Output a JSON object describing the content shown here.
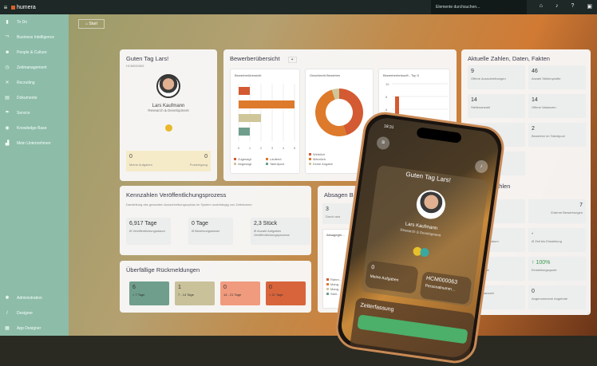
{
  "topbar": {
    "brand": "humera",
    "search_placeholder": "Elemente durchsuchen..."
  },
  "sidebar": {
    "items": [
      {
        "label": "To Do",
        "icon": "file-icon"
      },
      {
        "label": "Business Intelligence",
        "icon": "chart-icon"
      },
      {
        "label": "People & Culture",
        "icon": "people-icon"
      },
      {
        "label": "Zeitmanagement",
        "icon": "clock-icon"
      },
      {
        "label": "Recruiting",
        "icon": "recruiting-icon"
      },
      {
        "label": "Dokumente",
        "icon": "document-icon"
      },
      {
        "label": "Service",
        "icon": "service-icon"
      },
      {
        "label": "Knowledge Base",
        "icon": "knowledge-icon"
      },
      {
        "label": "Mein Unternehmen",
        "icon": "building-icon"
      }
    ],
    "bottom": [
      {
        "label": "Administration",
        "icon": "gear-icon"
      },
      {
        "label": "Designer",
        "icon": "pencil-icon"
      },
      {
        "label": "App Designer",
        "icon": "app-icon"
      }
    ]
  },
  "breadcrumb": {
    "label": "Start"
  },
  "greeting": {
    "title": "Guten Tag Lars!",
    "id": "HCM000063",
    "name": "Lars Kaufmann",
    "dept": "Research & Development",
    "stats": [
      {
        "value": "0",
        "label": "Meine Aufgaben"
      },
      {
        "value": "0",
        "label": "Posteingang"
      }
    ]
  },
  "overview": {
    "title": "Bewerberübersicht",
    "add": "+",
    "chart_data": [
      {
        "type": "bar",
        "title": "Bewerberübersicht",
        "categories": [
          "Zugesagt",
          "Laufend",
          "Abgesagt",
          "Talentpool"
        ],
        "values": [
          1,
          5,
          2,
          1
        ],
        "xticks": [
          "0",
          "1",
          "2",
          "3",
          "4",
          "5"
        ],
        "colors": [
          "#d35a32",
          "#dd7a2c",
          "#cfc69a",
          "#6f9e8c"
        ]
      },
      {
        "type": "pie",
        "title": "Geschlecht Bewerber",
        "categories": [
          "Weiblich",
          "Männlich",
          "Keine Angabe"
        ],
        "values": [
          45,
          50,
          5
        ],
        "colors": [
          "#d35a32",
          "#dd7a2c",
          "#cfc69a"
        ]
      },
      {
        "type": "bar",
        "title": "Bewerberherkunft - Top 5",
        "yticks": [
          "10",
          "8",
          "6",
          "4"
        ],
        "values": [
          8
        ],
        "colors": [
          "#d35a32"
        ]
      }
    ]
  },
  "facts": {
    "title": "Aktuelle Zahlen, Daten, Fakten",
    "tiles": [
      {
        "value": "9",
        "label": "Offene Ausschreibungen"
      },
      {
        "value": "46",
        "label": "Anzahl Stellenprofile"
      },
      {
        "value": "14",
        "label": "Stellenanzahl"
      },
      {
        "value": "14",
        "label": "Offene Vakanzen"
      },
      {
        "value": "",
        "label": "…ewerbungen"
      },
      {
        "value": "2",
        "label": "Bewerber im Talentpool"
      },
      {
        "value": "",
        "label": "…eldungen"
      }
    ],
    "kpi_title": "…g Kennzahlen",
    "kpis": [
      {
        "value": "",
        "label": "…ewerbungen"
      },
      {
        "value": "7",
        "label": "Externe Bewerbungen"
      },
      {
        "value": "…l Tage",
        "label": "…bis Eintrittsdatum"
      },
      {
        "value": "-",
        "label": "Ø Zeit bis Einstellung"
      },
      {
        "value": "…0%",
        "label": "…agenquote"
      },
      {
        "value": "↑ 100%",
        "label": "Einstellungsquote"
      },
      {
        "value": "",
        "label": "…ssagenanzahl"
      },
      {
        "value": "0",
        "label": "Angenommene Angebote"
      }
    ]
  },
  "publication": {
    "title": "Kennzahlen Veröffentlichungsprozess",
    "desc": "Darstellung des gesamten Ausschreibungszyklus im System unabhängig von Zeiträumen",
    "tiles": [
      {
        "value": "6,917 Tage",
        "label": "Ø Veröffentlichungsdauer"
      },
      {
        "value": "0 Tage",
        "label": "Ø Besetzungsdauer"
      },
      {
        "value": "2,3 Stück",
        "label": "Ø Anzahl Aufgaben Veröffentlichungsprozess"
      }
    ]
  },
  "overdue": {
    "title": "Überfällige Rückmeldungen",
    "tiles": [
      {
        "value": "6",
        "label": "< 7 Tage",
        "color": "#6f9e8c"
      },
      {
        "value": "1",
        "label": "7 - 14 Tage",
        "color": "#c9c19a"
      },
      {
        "value": "0",
        "label": "14 - 21 Tage",
        "color": "#f09a7e"
      },
      {
        "value": "0",
        "label": "> 21 Tage",
        "color": "#d8643c"
      }
    ]
  },
  "rejections": {
    "title": "Absagen B…",
    "value": "3",
    "label": "Durch uns",
    "chart_title": "Absagegrü…",
    "legend": [
      "Rahm…",
      "Mang…",
      "Mang…",
      "Stell…"
    ]
  },
  "phone": {
    "time": "18:31",
    "greeting": "Guten Tag Lars!",
    "name": "Lars Kaufmann",
    "dept": "Research & Development",
    "tasks_value": "0",
    "tasks_label": "Meine Aufgaben",
    "id_value": "HCM000063",
    "id_label": "Personalnumm…",
    "section": "Zeiterfassung"
  }
}
